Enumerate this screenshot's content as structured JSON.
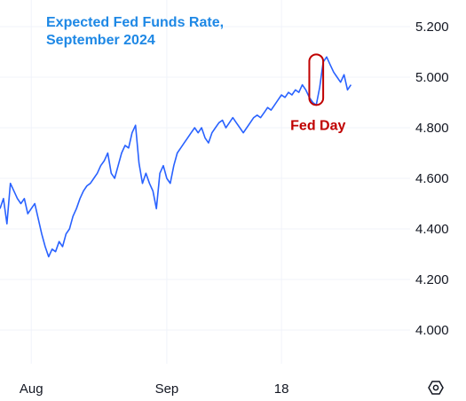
{
  "chart_data": {
    "type": "line",
    "title_lines": [
      "Expected Fed Funds Rate,",
      "September 2024"
    ],
    "xlabel": "",
    "ylabel": "",
    "ylim": [
      3.88,
      5.26
    ],
    "yticks": [
      "5.200",
      "5.000",
      "4.800",
      "4.600",
      "4.400",
      "4.200",
      "4.000"
    ],
    "ytick_values": [
      5.2,
      5.0,
      4.8,
      4.6,
      4.4,
      4.2,
      4.0
    ],
    "xlim": [
      0,
      118
    ],
    "xticks": [
      "Aug",
      "Sep",
      "18"
    ],
    "xtick_positions": [
      9,
      48,
      81
    ],
    "grid": true,
    "series": [
      {
        "color": "#2962ff",
        "x": [
          0,
          1,
          2,
          3,
          4,
          5,
          6,
          7,
          8,
          9,
          10,
          11,
          12,
          13,
          14,
          15,
          16,
          17,
          18,
          19,
          20,
          21,
          22,
          23,
          24,
          25,
          26,
          27,
          28,
          29,
          30,
          31,
          32,
          33,
          34,
          35,
          36,
          37,
          38,
          39,
          40,
          41,
          42,
          43,
          44,
          45,
          46,
          47,
          48,
          49,
          50,
          51,
          52,
          53,
          54,
          55,
          56,
          57,
          58,
          59,
          60,
          61,
          62,
          63,
          64,
          65,
          66,
          67,
          68,
          69,
          70,
          71,
          72,
          73,
          74,
          75,
          76,
          77,
          78,
          79,
          80,
          81,
          82,
          83,
          84,
          85,
          86,
          87,
          88,
          89,
          90,
          91,
          92,
          93,
          94,
          95,
          96,
          97,
          98,
          99,
          100,
          101
        ],
        "y": [
          4.48,
          4.52,
          4.42,
          4.58,
          4.55,
          4.52,
          4.5,
          4.52,
          4.46,
          4.48,
          4.5,
          4.44,
          4.38,
          4.33,
          4.29,
          4.32,
          4.31,
          4.35,
          4.33,
          4.38,
          4.4,
          4.45,
          4.48,
          4.52,
          4.55,
          4.57,
          4.58,
          4.6,
          4.62,
          4.65,
          4.67,
          4.7,
          4.62,
          4.6,
          4.65,
          4.7,
          4.73,
          4.72,
          4.78,
          4.81,
          4.66,
          4.58,
          4.62,
          4.58,
          4.55,
          4.48,
          4.62,
          4.65,
          4.6,
          4.58,
          4.65,
          4.7,
          4.72,
          4.74,
          4.76,
          4.78,
          4.8,
          4.78,
          4.8,
          4.76,
          4.74,
          4.78,
          4.8,
          4.82,
          4.83,
          4.8,
          4.82,
          4.84,
          4.82,
          4.8,
          4.78,
          4.8,
          4.82,
          4.84,
          4.85,
          4.84,
          4.86,
          4.88,
          4.87,
          4.89,
          4.91,
          4.93,
          4.92,
          4.94,
          4.93,
          4.95,
          4.94,
          4.97,
          4.95,
          4.92,
          4.9,
          4.89,
          4.96,
          5.06,
          5.08,
          5.05,
          5.02,
          5.0,
          4.98,
          5.01,
          4.95,
          4.97
        ]
      }
    ],
    "annotations": [
      {
        "text": "Fed Day",
        "x_range": [
          89,
          93
        ],
        "y_range": [
          4.89,
          5.09
        ]
      }
    ],
    "colors": {
      "line": "#2962ff",
      "title": "#1e88e5",
      "annotation": "#c00000",
      "grid": "#f0f3fa"
    }
  },
  "toolbar": {
    "icon": "settings-hexagon-icon"
  }
}
